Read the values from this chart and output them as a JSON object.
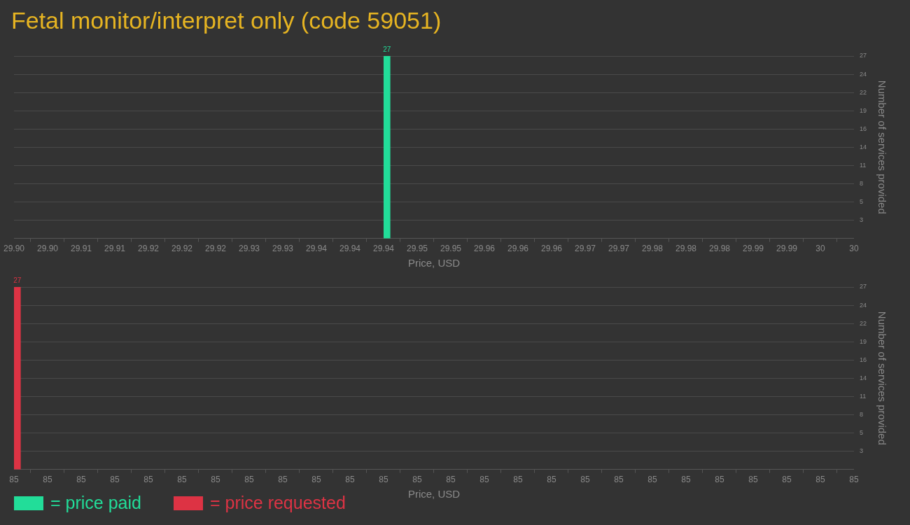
{
  "chart_data": [
    {
      "type": "bar",
      "title": "Fetal monitor/interpret only (code 59051)",
      "xlabel": "Price, USD",
      "ylabel": "Number of services provided",
      "x": [
        29.9444
      ],
      "series": [
        {
          "name": "= price paid",
          "color": "#22dd99",
          "values": [
            27
          ]
        }
      ],
      "xlim": [
        29.9,
        30
      ],
      "xticks": [
        {
          "value": 29.9,
          "label": "29.90"
        },
        {
          "value": 29.904,
          "label": "29.90"
        },
        {
          "value": 29.908,
          "label": "29.91"
        },
        {
          "value": 29.912,
          "label": "29.91"
        },
        {
          "value": 29.916,
          "label": "29.92"
        },
        {
          "value": 29.92,
          "label": "29.92"
        },
        {
          "value": 29.924,
          "label": "29.92"
        },
        {
          "value": 29.928,
          "label": "29.93"
        },
        {
          "value": 29.932,
          "label": "29.93"
        },
        {
          "value": 29.936,
          "label": "29.94"
        },
        {
          "value": 29.94,
          "label": "29.94"
        },
        {
          "value": 29.944,
          "label": "29.94"
        },
        {
          "value": 29.948,
          "label": "29.95"
        },
        {
          "value": 29.952,
          "label": "29.95"
        },
        {
          "value": 29.956,
          "label": "29.96"
        },
        {
          "value": 29.96,
          "label": "29.96"
        },
        {
          "value": 29.964,
          "label": "29.96"
        },
        {
          "value": 29.968,
          "label": "29.97"
        },
        {
          "value": 29.972,
          "label": "29.97"
        },
        {
          "value": 29.976,
          "label": "29.98"
        },
        {
          "value": 29.98,
          "label": "29.98"
        },
        {
          "value": 29.984,
          "label": "29.98"
        },
        {
          "value": 29.988,
          "label": "29.99"
        },
        {
          "value": 29.992,
          "label": "29.99"
        },
        {
          "value": 29.996,
          "label": "30"
        },
        30
      ],
      "ylim": [
        0,
        27
      ],
      "yticks": [
        {
          "value": 2.7,
          "label": "3"
        },
        {
          "value": 5.4,
          "label": "5"
        },
        {
          "value": 8.1,
          "label": "8"
        },
        {
          "value": 10.8,
          "label": "11"
        },
        {
          "value": 13.5,
          "label": "14"
        },
        {
          "value": 16.2,
          "label": "16"
        },
        {
          "value": 18.9,
          "label": "19"
        },
        {
          "value": 21.6,
          "label": "22"
        },
        {
          "value": 24.3,
          "label": "24"
        },
        27
      ],
      "grid": "y",
      "data_labels": true
    },
    {
      "type": "bar",
      "xlabel": "Price, USD",
      "ylabel": "Number of services provided",
      "x": [
        85.001
      ],
      "series": [
        {
          "name": "= price requested",
          "color": "#dd3344",
          "values": [
            27
          ]
        }
      ],
      "xlim": [
        85,
        85.25
      ],
      "xticks": [
        85,
        {
          "value": 85.01,
          "label": "85"
        },
        {
          "value": 85.02,
          "label": "85"
        },
        {
          "value": 85.03,
          "label": "85"
        },
        {
          "value": 85.04,
          "label": "85"
        },
        {
          "value": 85.05,
          "label": "85"
        },
        {
          "value": 85.06,
          "label": "85"
        },
        {
          "value": 85.07,
          "label": "85"
        },
        {
          "value": 85.08,
          "label": "85"
        },
        {
          "value": 85.09,
          "label": "85"
        },
        {
          "value": 85.1,
          "label": "85"
        },
        {
          "value": 85.11,
          "label": "85"
        },
        {
          "value": 85.12,
          "label": "85"
        },
        {
          "value": 85.13,
          "label": "85"
        },
        {
          "value": 85.14,
          "label": "85"
        },
        {
          "value": 85.15,
          "label": "85"
        },
        {
          "value": 85.16,
          "label": "85"
        },
        {
          "value": 85.17,
          "label": "85"
        },
        {
          "value": 85.18,
          "label": "85"
        },
        {
          "value": 85.19,
          "label": "85"
        },
        {
          "value": 85.2,
          "label": "85"
        },
        {
          "value": 85.21,
          "label": "85"
        },
        {
          "value": 85.22,
          "label": "85"
        },
        {
          "value": 85.23,
          "label": "85"
        },
        {
          "value": 85.24,
          "label": "85"
        },
        {
          "value": 85.25,
          "label": "85"
        }
      ],
      "ylim": [
        0,
        27
      ],
      "yticks": [
        {
          "value": 2.7,
          "label": "3"
        },
        {
          "value": 5.4,
          "label": "5"
        },
        {
          "value": 8.1,
          "label": "8"
        },
        {
          "value": 10.8,
          "label": "11"
        },
        {
          "value": 13.5,
          "label": "14"
        },
        {
          "value": 16.2,
          "label": "16"
        },
        {
          "value": 18.9,
          "label": "19"
        },
        {
          "value": 21.6,
          "label": "22"
        },
        {
          "value": 24.3,
          "label": "24"
        },
        27
      ],
      "grid": "y",
      "data_labels": true,
      "legend": "bottom left"
    }
  ]
}
